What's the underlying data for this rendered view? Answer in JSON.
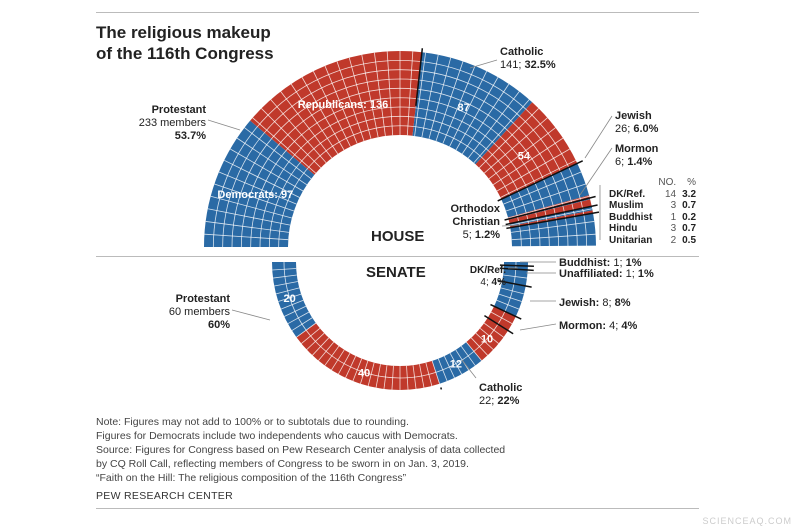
{
  "title_line1": "The religious makeup",
  "title_line2": "of the 116th Congress",
  "colors": {
    "democrat": "#2a6aa5",
    "republican": "#c0392b",
    "grid": "#ffffff"
  },
  "chart_data": [
    {
      "type": "parliament-arc",
      "title": "HOUSE",
      "total": 435,
      "segments": [
        {
          "group": "Protestant",
          "party": "democrat",
          "seats": 97,
          "label": "Democrats: 97"
        },
        {
          "group": "Protestant",
          "party": "republican",
          "seats": 136,
          "label": "Republicans: 136"
        },
        {
          "group": "Catholic",
          "party": "democrat",
          "seats": 87,
          "label": "87"
        },
        {
          "group": "Catholic",
          "party": "republican",
          "seats": 54,
          "label": "54"
        },
        {
          "group": "Jewish",
          "party": "democrat",
          "seats": 24
        },
        {
          "group": "Jewish",
          "party": "republican",
          "seats": 2
        },
        {
          "group": "Mormon",
          "party": "democrat",
          "seats": 1
        },
        {
          "group": "Mormon",
          "party": "republican",
          "seats": 5
        },
        {
          "group": "Orthodox Christian",
          "party": "democrat",
          "seats": 3
        },
        {
          "group": "Orthodox Christian",
          "party": "republican",
          "seats": 2
        },
        {
          "group": "Other",
          "party": "democrat",
          "seats": 23
        }
      ],
      "annotations": {
        "protestant": {
          "name": "Protestant",
          "line2": "233 members",
          "pct": "53.7%"
        },
        "catholic": {
          "name": "Catholic",
          "count": "141;",
          "pct": "32.5%"
        },
        "jewish": {
          "name": "Jewish",
          "count": "26;",
          "pct": "6.0%"
        },
        "mormon": {
          "name": "Mormon",
          "count": "6;",
          "pct": "1.4%"
        },
        "orthodox": {
          "name1": "Orthodox",
          "name2": "Christian",
          "count": "5;",
          "pct": "1.2%"
        }
      },
      "table": {
        "headers": [
          "NO.",
          "%"
        ],
        "rows": [
          [
            "DK/Ref.",
            "14",
            "3.2"
          ],
          [
            "Muslim",
            "3",
            "0.7"
          ],
          [
            "Buddhist",
            "1",
            "0.2"
          ],
          [
            "Hindu",
            "3",
            "0.7"
          ],
          [
            "Unitarian",
            "2",
            "0.5"
          ]
        ]
      }
    },
    {
      "type": "parliament-arc",
      "title": "SENATE",
      "total": 100,
      "segments": [
        {
          "group": "Protestant",
          "party": "democrat",
          "seats": 20,
          "label": "20"
        },
        {
          "group": "Protestant",
          "party": "republican",
          "seats": 40,
          "label": "40"
        },
        {
          "group": "Catholic",
          "party": "democrat",
          "seats": 12,
          "label": "12"
        },
        {
          "group": "Catholic",
          "party": "republican",
          "seats": 10,
          "label": "10"
        },
        {
          "group": "Mormon",
          "party": "republican",
          "seats": 4
        },
        {
          "group": "Jewish",
          "party": "democrat",
          "seats": 8
        },
        {
          "group": "DK/Ref.",
          "party": "democrat",
          "seats": 4
        },
        {
          "group": "Unaffiliated",
          "party": "democrat",
          "seats": 1
        },
        {
          "group": "Buddhist",
          "party": "democrat",
          "seats": 1
        }
      ],
      "annotations": {
        "protestant": {
          "name": "Protestant",
          "line2": "60 members",
          "pct": "60%"
        },
        "catholic": {
          "name": "Catholic",
          "count": "22;",
          "pct": "22%"
        },
        "dkref": {
          "name": "DK/Ref.",
          "count": "4;",
          "pct": "4%"
        },
        "buddhist": {
          "name": "Buddhist:",
          "count": "1;",
          "pct": "1%"
        },
        "unaffiliated": {
          "name": "Unaffiliated:",
          "count": "1;",
          "pct": "1%"
        },
        "jewish": {
          "name": "Jewish:",
          "count": "8;",
          "pct": "8%"
        },
        "mormon": {
          "name": "Mormon:",
          "count": "4;",
          "pct": "4%"
        }
      }
    }
  ],
  "notes": [
    "Note: Figures may not add to 100% or to subtotals due to rounding.",
    "Figures for Democrats include two independents who caucus with Democrats.",
    "Source: Figures for Congress based on Pew Research Center analysis of data collected",
    "by CQ Roll Call, reflecting members of Congress to be sworn in on Jan. 3, 2019.",
    "“Faith on the Hill: The religious composition of the 116th Congress”"
  ],
  "source": "PEW RESEARCH CENTER",
  "watermark": "SCIENCEAQ.COM"
}
